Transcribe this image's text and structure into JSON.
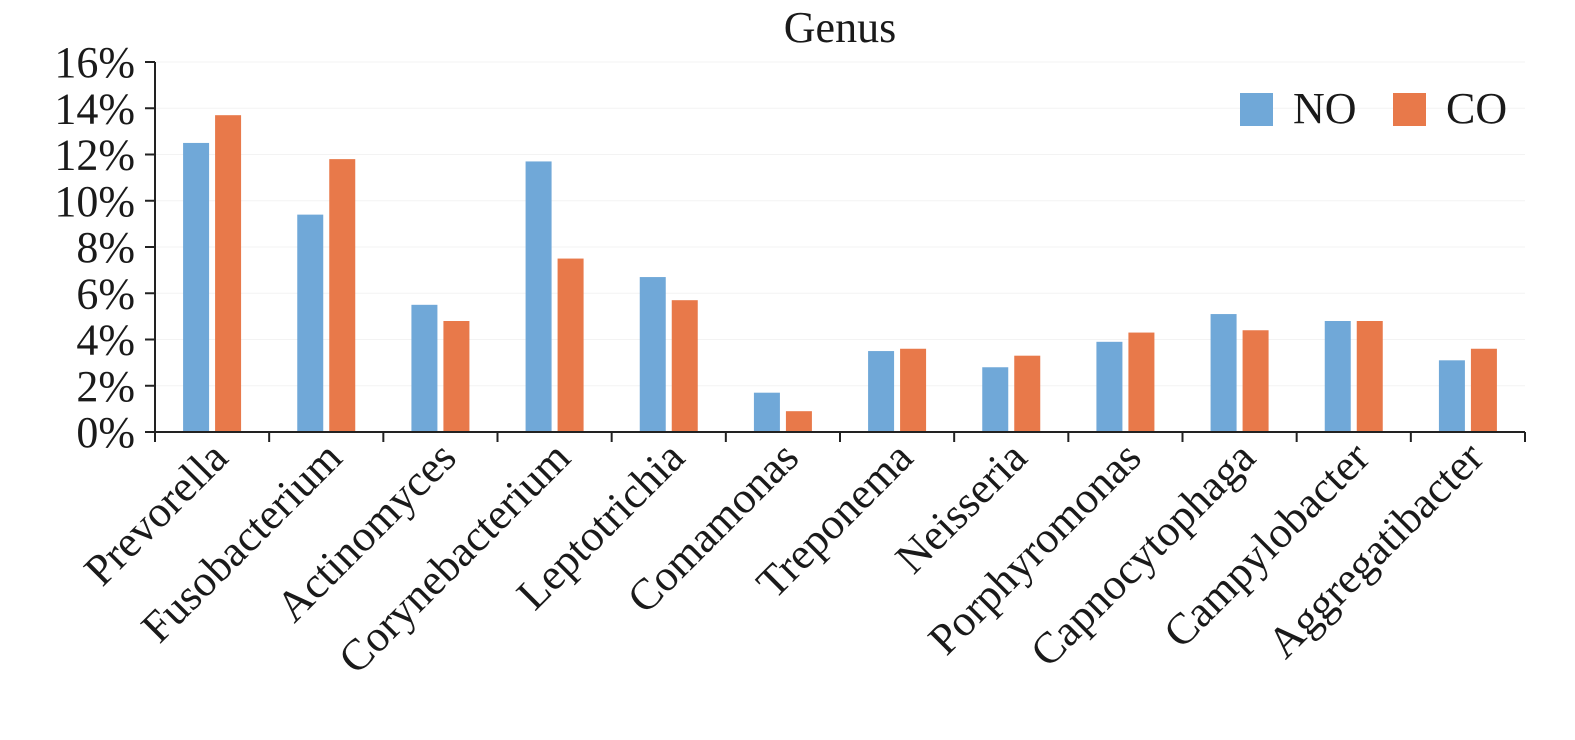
{
  "chart_data": {
    "type": "bar",
    "title": "Genus",
    "xlabel": "",
    "ylabel": "",
    "ylim": [
      0,
      16
    ],
    "y_ticks": [
      "0%",
      "2%",
      "4%",
      "6%",
      "8%",
      "10%",
      "12%",
      "14%",
      "16%"
    ],
    "y_tick_values": [
      0,
      2,
      4,
      6,
      8,
      10,
      12,
      14,
      16
    ],
    "y_unit": "%",
    "grid": false,
    "legend_position": "top-right",
    "categories": [
      "Prevorella",
      "Fusobacterium",
      "Actinomyces",
      "Corynebacterium",
      "Leptotrichia",
      "Comamonas",
      "Treponema",
      "Neisseria",
      "Porphyromonas",
      "Capnocytophaga",
      "Campylobacter",
      "Aggregatibacter"
    ],
    "series": [
      {
        "name": "NO",
        "color": "#70a8d8",
        "values": [
          12.5,
          9.4,
          5.5,
          11.7,
          6.7,
          1.7,
          3.5,
          2.8,
          3.9,
          5.1,
          4.8,
          3.1
        ]
      },
      {
        "name": "CO",
        "color": "#e8794a",
        "values": [
          13.7,
          11.8,
          4.8,
          7.5,
          5.7,
          0.9,
          3.6,
          3.3,
          4.3,
          4.4,
          4.8,
          3.6
        ]
      }
    ]
  }
}
